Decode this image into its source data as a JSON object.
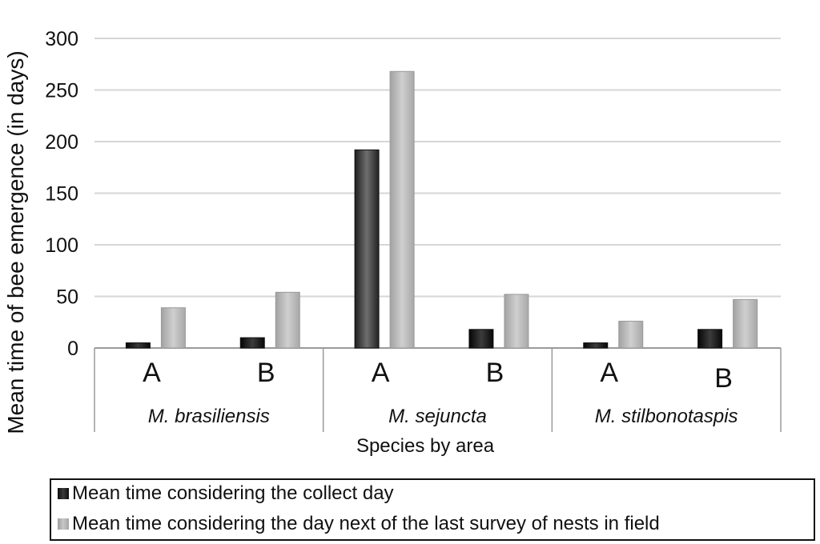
{
  "chart_data": {
    "type": "bar",
    "ylabel": "Mean time of bee emergence (in days)",
    "xlabel": "Species by area",
    "ylim": [
      0,
      300
    ],
    "yticks": [
      0,
      50,
      100,
      150,
      200,
      250,
      300
    ],
    "grid": "horizontal",
    "legend_placement": "bottom",
    "groups": [
      {
        "species": "M. brasiliensis",
        "areas": [
          "A",
          "B"
        ]
      },
      {
        "species": "M. sejuncta",
        "areas": [
          "A",
          "B"
        ]
      },
      {
        "species": "M. stilbonotaspis",
        "areas": [
          "A",
          "B"
        ]
      }
    ],
    "categories": [
      "M. brasiliensis A",
      "M. brasiliensis B",
      "M. sejuncta A",
      "M. sejuncta B",
      "M. stilbonotaspis A",
      "M. stilbonotaspis B"
    ],
    "series": [
      {
        "name": "Mean time considering the collect day",
        "color": "#1a1a1a",
        "values": [
          5,
          10,
          192,
          18,
          5,
          18
        ]
      },
      {
        "name": "Mean time considering the day next of the last survey of nests in field",
        "color": "#b8b8b8",
        "values": [
          39,
          54,
          268,
          52,
          26,
          47
        ]
      }
    ],
    "highlight_color": "#5a5a5a"
  },
  "legend": {
    "item1": "Mean time considering the collect day",
    "item2": "Mean time considering the day next of the last survey of nests in field"
  }
}
